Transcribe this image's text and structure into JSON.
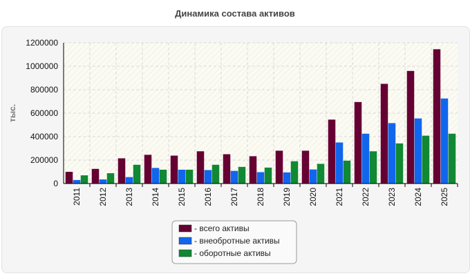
{
  "chart_data": {
    "type": "bar",
    "title": "Динамика состава активов",
    "xlabel": "",
    "ylabel": "тыс.",
    "ylim": [
      0,
      1200000
    ],
    "yticks": [
      0,
      200000,
      400000,
      600000,
      800000,
      1000000,
      1200000
    ],
    "grid": true,
    "legend_position": "bottom-center",
    "categories": [
      "2011",
      "2012",
      "2013",
      "2014",
      "2015",
      "2016",
      "2017",
      "2018",
      "2019",
      "2020",
      "2021",
      "2022",
      "2023",
      "2024",
      "2025"
    ],
    "series": [
      {
        "name": "- всего активы",
        "color": "#660033",
        "values": [
          100000,
          125000,
          215000,
          245000,
          238000,
          275000,
          250000,
          233000,
          280000,
          280000,
          545000,
          695000,
          850000,
          960000,
          1145000
        ]
      },
      {
        "name": "- внеобротные активы",
        "color": "#1166ee",
        "values": [
          30000,
          35000,
          55000,
          133000,
          118000,
          115000,
          108000,
          97000,
          95000,
          120000,
          350000,
          425000,
          515000,
          555000,
          725000
        ]
      },
      {
        "name": "- оборотные активы",
        "color": "#118833",
        "values": [
          70000,
          88000,
          160000,
          118000,
          118000,
          160000,
          142000,
          136000,
          190000,
          168000,
          195000,
          275000,
          342000,
          408000,
          425000
        ]
      }
    ]
  }
}
